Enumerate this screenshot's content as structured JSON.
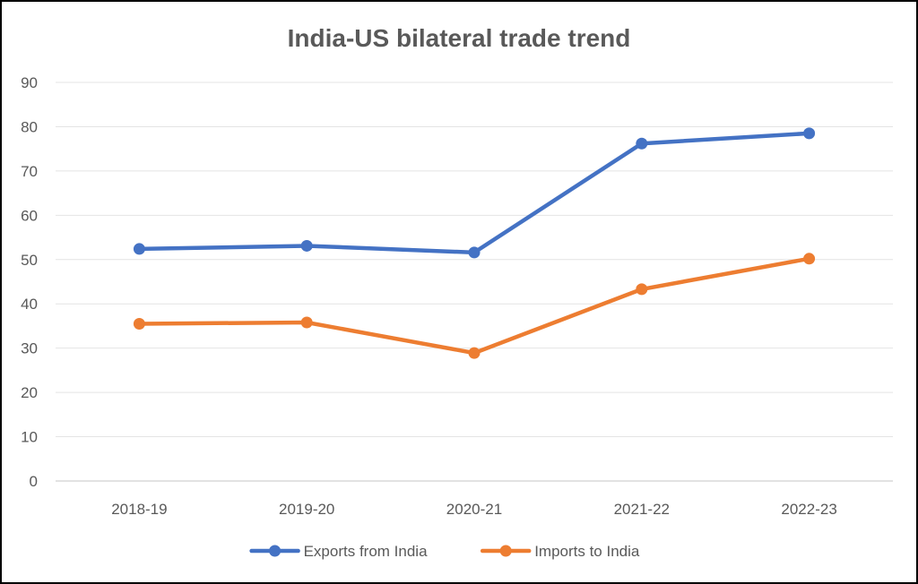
{
  "chart_data": {
    "type": "line",
    "title": "India-US bilateral trade trend",
    "xlabel": "",
    "ylabel": "",
    "categories": [
      "2018-19",
      "2019-20",
      "2020-21",
      "2021-22",
      "2022-23"
    ],
    "ylim": [
      0,
      90
    ],
    "yticks": [
      "0",
      "10",
      "20",
      "30",
      "40",
      "50",
      "60",
      "70",
      "80",
      "90"
    ],
    "grid": true,
    "legend_position": "bottom",
    "series": [
      {
        "name": "Exports from India",
        "color": "#4472C4",
        "values": [
          52.4,
          53.1,
          51.6,
          76.2,
          78.5
        ]
      },
      {
        "name": "Imports to India",
        "color": "#ED7D31",
        "values": [
          35.5,
          35.8,
          28.9,
          43.3,
          50.2
        ]
      }
    ]
  }
}
